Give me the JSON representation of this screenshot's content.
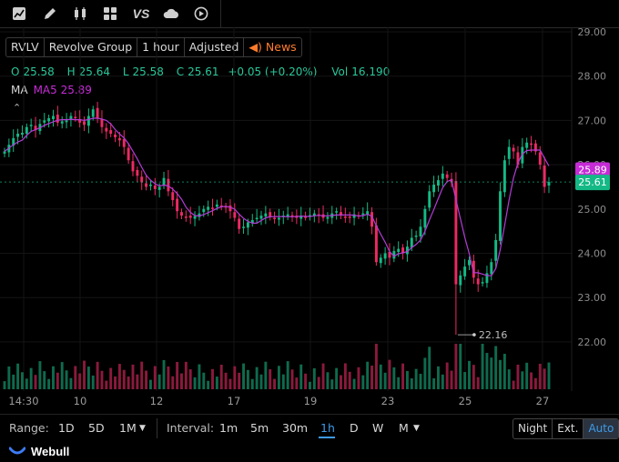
{
  "toolbar": {
    "icons": [
      "chart-icon",
      "pencil-icon",
      "candlestick-icon",
      "grid-icon",
      "compare-icon",
      "cloud-icon",
      "replay-icon"
    ],
    "compare_label": "VS"
  },
  "header": {
    "ticker": "RVLV",
    "company": "Revolve Group",
    "interval": "1 hour",
    "adjust": "Adjusted",
    "news_label": "News"
  },
  "ohlc": {
    "o_label": "O",
    "o": "25.58",
    "h_label": "H",
    "h": "25.64",
    "l_label": "L",
    "l": "25.58",
    "c_label": "C",
    "c": "25.61",
    "change": "+0.05 (+0.20%)",
    "vol_label": "Vol",
    "vol": "16,190"
  },
  "indicator": {
    "label": "MA",
    "value": "MA5 25.89"
  },
  "chart_data": {
    "type": "candlestick",
    "colors": {
      "up": "#15b985",
      "down": "#ec2a63",
      "ma": "#b33cd6"
    },
    "y_axis_labels": [
      "29.00",
      "28.00",
      "27.00",
      "26.00",
      "25.00",
      "24.00",
      "23.00",
      "22.00"
    ],
    "ylim": [
      21.0,
      29.1
    ],
    "x_axis_labels": [
      "14:30",
      "10",
      "12",
      "17",
      "19",
      "23",
      "25",
      "27"
    ],
    "price_tags": {
      "ma5": "25.89",
      "last": "25.61"
    },
    "low_marker": "22.16",
    "closes": [
      26.3,
      26.45,
      26.6,
      26.7,
      26.72,
      26.85,
      26.9,
      26.78,
      26.92,
      27.0,
      27.05,
      27.1,
      26.95,
      26.98,
      27.0,
      27.1,
      27.05,
      26.95,
      26.9,
      27.1,
      27.25,
      27.05,
      26.85,
      26.75,
      26.7,
      26.62,
      26.55,
      26.4,
      26.1,
      25.85,
      25.75,
      25.6,
      25.5,
      25.55,
      25.45,
      25.5,
      25.7,
      25.4,
      25.2,
      24.95,
      24.85,
      24.82,
      24.8,
      24.84,
      24.9,
      25.0,
      25.05,
      25.02,
      25.1,
      25.08,
      25.05,
      24.95,
      24.8,
      24.55,
      24.6,
      24.7,
      24.75,
      24.8,
      24.85,
      24.9,
      24.82,
      24.78,
      24.8,
      24.85,
      24.88,
      24.82,
      24.8,
      24.85,
      24.82,
      24.86,
      24.9,
      24.85,
      24.8,
      24.82,
      24.9,
      24.95,
      24.85,
      24.8,
      24.82,
      24.88,
      24.85,
      24.9,
      24.95,
      24.6,
      23.8,
      23.9,
      24.0,
      23.9,
      24.05,
      24.1,
      24.0,
      24.15,
      24.35,
      24.4,
      24.6,
      25.0,
      25.4,
      25.55,
      25.65,
      25.8,
      25.7,
      25.6,
      23.3,
      23.5,
      23.7,
      23.85,
      23.45,
      23.3,
      23.35,
      23.55,
      23.8,
      24.3,
      25.4,
      26.1,
      26.4,
      26.3,
      26.0,
      26.4,
      26.5,
      26.45,
      26.3,
      26.0,
      25.5,
      25.61
    ]
  },
  "range": {
    "label": "Range:",
    "options": [
      "1D",
      "5D",
      "1M"
    ]
  },
  "interval": {
    "label": "Interval:",
    "options": [
      "1m",
      "5m",
      "30m",
      "1h",
      "D",
      "W",
      "M"
    ],
    "active": "1h"
  },
  "session": {
    "options": [
      "Night",
      "Ext.",
      "Auto"
    ],
    "active": "Auto"
  },
  "brand": {
    "name": "Webull"
  }
}
